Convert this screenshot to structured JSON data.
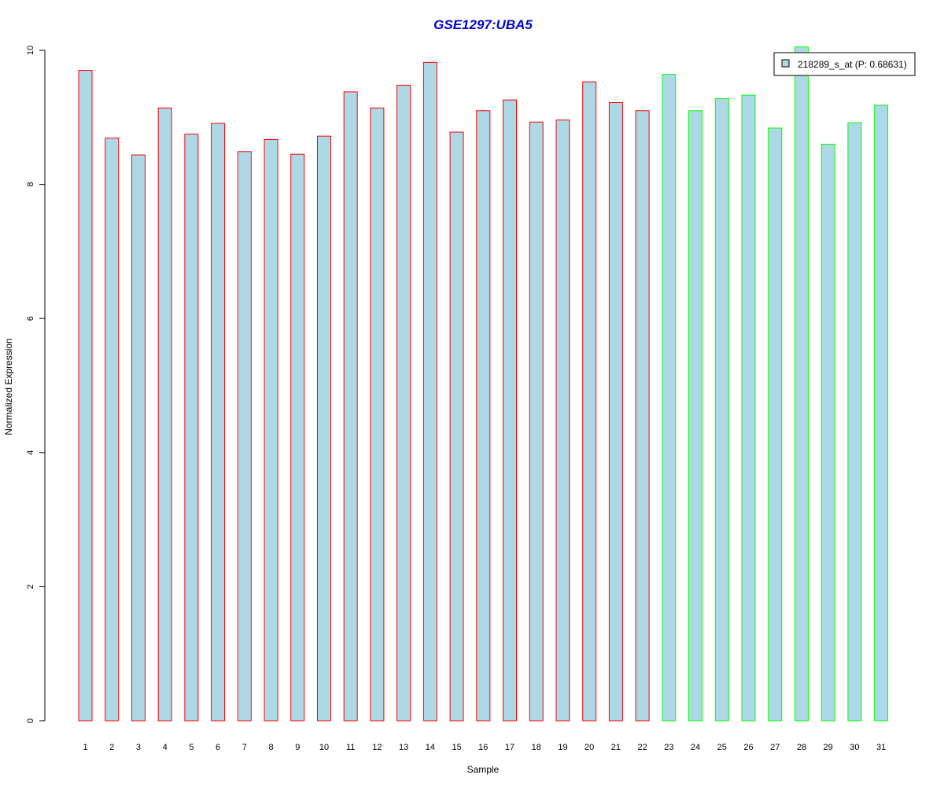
{
  "chart_data": {
    "type": "bar",
    "title": "GSE1297:UBA5",
    "xlabel": "Sample",
    "ylabel": "Normalized Expression",
    "ylim": [
      0,
      10
    ],
    "yticks": [
      0,
      2,
      4,
      6,
      8,
      10
    ],
    "categories": [
      "1",
      "2",
      "3",
      "4",
      "5",
      "6",
      "7",
      "8",
      "9",
      "10",
      "11",
      "12",
      "13",
      "14",
      "15",
      "16",
      "17",
      "18",
      "19",
      "20",
      "21",
      "22",
      "23",
      "24",
      "25",
      "26",
      "27",
      "28",
      "29",
      "30",
      "31"
    ],
    "values": [
      9.7,
      8.69,
      8.44,
      9.14,
      8.75,
      8.91,
      8.49,
      8.67,
      8.45,
      8.72,
      9.38,
      9.14,
      9.48,
      9.82,
      8.78,
      9.1,
      9.26,
      8.93,
      8.96,
      9.53,
      9.22,
      9.1,
      9.64,
      9.1,
      9.28,
      9.33,
      8.84,
      10.05,
      8.6,
      8.92,
      9.18
    ],
    "groups": [
      1,
      1,
      1,
      1,
      1,
      1,
      1,
      1,
      1,
      1,
      1,
      1,
      1,
      1,
      1,
      1,
      1,
      1,
      1,
      1,
      1,
      1,
      2,
      2,
      2,
      2,
      2,
      2,
      2,
      2,
      2
    ],
    "legend": {
      "label": "218289_s_at (P: 0.68631)",
      "placement": "top-right"
    },
    "colors": {
      "fill": "#add8e6",
      "group1_border": "#ff0000",
      "group2_border": "#00ff00",
      "title": "#0000cd"
    },
    "grid": false
  }
}
